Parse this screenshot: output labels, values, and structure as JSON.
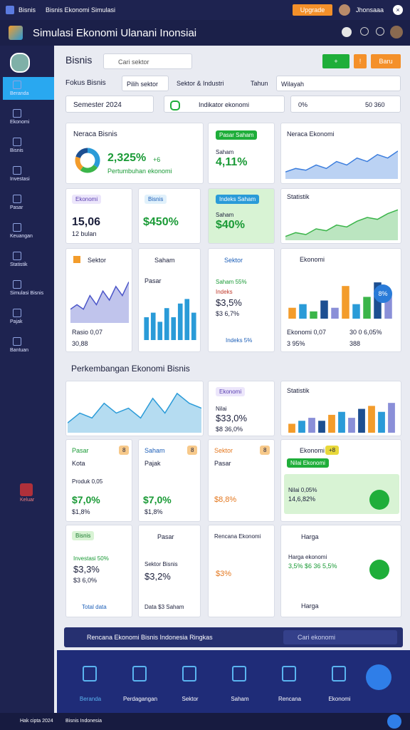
{
  "topbar": {
    "app": "Bisnis",
    "title": "Bisnis Ekonomi Simulasi",
    "button": "Upgrade",
    "user": "Jhonsaaa"
  },
  "header": {
    "title": "Simulasi Ekonomi Ulanani Inonsiai"
  },
  "sidebar": {
    "items": [
      "Beranda",
      "Ekonomi",
      "Bisnis",
      "Investasi",
      "Pasar",
      "Keuangan",
      "Statistik",
      "Simulasi Bisnis",
      "Pajak",
      "Bantuan"
    ],
    "logout": "Keluar"
  },
  "toolbar": {
    "title": "Bisnis",
    "search": "Cari sektor",
    "add": "+",
    "alert": "!",
    "new": "Baru"
  },
  "filters": {
    "label": "Fokus Bisnis",
    "sector": "Pilih sektor",
    "industry": "Sektor & Industri",
    "year": "Tahun",
    "region": "Wilayah",
    "period": "Semester 2024",
    "indicator": "Indikator ekonomi",
    "pct": "0%",
    "total": "50 360"
  },
  "cards": {
    "neraca": {
      "title": "Neraca Bisnis",
      "value": "2,325%",
      "delta": "+6",
      "note": "Pertumbuhan ekonomi"
    },
    "saham": {
      "tag": "Pasar Saham",
      "label": "Saham",
      "value": "4,11%"
    },
    "neraca_ekonomi": {
      "title": "Neraca Ekonomi"
    },
    "ekonomi": {
      "tag": "Ekonomi",
      "value": "15,06",
      "note": "12 bulan"
    },
    "bisnis": {
      "tag": "Bisnis",
      "value": "$450%"
    },
    "indeks": {
      "tag": "Indeks Saham",
      "label": "Saham",
      "value": "$40%"
    },
    "statistik": {
      "title": "Statistik"
    },
    "sektor": {
      "title": "Sektor",
      "ratio": "Rasio 0,07",
      "value": "30,88"
    },
    "saham2": {
      "title": "Saham",
      "label": "Pasar"
    },
    "sektor2": {
      "title": "Sektor",
      "l1": "Saham 55%",
      "l2": "Indeks",
      "v1": "$3,5%",
      "v2": "$3 6,7%",
      "foot": "Indeks 5%"
    },
    "ekonomi2": {
      "title": "Ekonomi",
      "badge": "8%",
      "l1": "Ekonomi 0,07",
      "l2": "30 0 6,05%",
      "l3": "3 95%",
      "l4": "388"
    },
    "section": {
      "title": "Perkembangan Ekonomi Bisnis"
    },
    "ekonomi3": {
      "tag": "Ekonomi",
      "l1": "Nilai",
      "v1": "$33,0%",
      "v2": "$8 36,0%"
    },
    "statistik2": {
      "title": "Statistik"
    },
    "pasar": {
      "tag": "Pasar",
      "badge": "8",
      "title": "Kota",
      "l1": "Produk 0,05",
      "v1": "$7,0%",
      "v2": "$1,8%"
    },
    "saham3": {
      "tag": "Saham",
      "badge": "8",
      "title": "Pajak",
      "v1": "$7,0%",
      "v2": "$1,8%"
    },
    "sektor3": {
      "tag": "Sektor",
      "badge": "8",
      "title": "Pasar",
      "v1": "$8,8%"
    },
    "ekonomi4": {
      "title": "Ekonomi",
      "badge": "+8",
      "tag": "Nilai Ekonomi",
      "l1": "Nilai 0,05%",
      "v1": "14,6,82%"
    },
    "bisnis2": {
      "tag": "Bisnis",
      "l1": "Investasi 50%",
      "v1": "$3,3%",
      "v2": "$3 6,0%",
      "foot": "Total data"
    },
    "pasar2": {
      "tag": "Pasar",
      "l1": "Sektor Bisnis",
      "v1": "$3,2%",
      "foot": "Data $3 Saham"
    },
    "rencana": {
      "title": "Rencana Ekonomi",
      "v1": "$3%"
    },
    "harga": {
      "title": "Harga",
      "l1": "Harga ekonomi",
      "v1": "3,5% $6 36 5,5%",
      "foot": "Harga"
    }
  },
  "banner": {
    "title": "Rencana Ekonomi Bisnis Indonesia Ringkas",
    "search": "Cari ekonomi"
  },
  "nav": {
    "items": [
      "Beranda",
      "Perdagangan",
      "Sektor",
      "Saham",
      "Rencana",
      "Ekonomi"
    ]
  },
  "footer": {
    "left": "Hak cipta 2024",
    "center": "Bisnis Indonesia"
  },
  "charts": [
    {
      "type": "donut",
      "values": [
        35,
        25,
        20,
        20
      ],
      "colors": [
        "#2a9bd8",
        "#3bb54a",
        "#f39c2b",
        "#1d4f91"
      ]
    },
    {
      "type": "area",
      "values": [
        2,
        3,
        2.5,
        4,
        3,
        5,
        4,
        6,
        5,
        7,
        6,
        8
      ],
      "ylim": [
        0,
        9
      ],
      "color": "#3b7ddd"
    },
    {
      "type": "area",
      "values": [
        1,
        2,
        1.5,
        3,
        2.5,
        4,
        3.5,
        5,
        6,
        5.5,
        7,
        8
      ],
      "ylim": [
        0,
        9
      ],
      "color": "#3bb54a"
    },
    {
      "type": "area",
      "values": [
        3,
        4,
        3,
        6,
        4,
        7,
        5,
        8,
        6,
        9
      ],
      "ylim": [
        0,
        10
      ],
      "color": "#4b55c8"
    },
    {
      "type": "bar",
      "values": [
        5,
        6,
        4,
        7,
        5,
        8,
        9,
        6
      ],
      "ylim": [
        0,
        10
      ],
      "colors": [
        "#2a9bd8"
      ]
    },
    {
      "type": "bar",
      "values": [
        3,
        4,
        2,
        5,
        3,
        9,
        4,
        6,
        10,
        7
      ],
      "ylim": [
        0,
        11
      ],
      "colors": [
        "#f39c2b",
        "#2a9bd8",
        "#3bb54a",
        "#1d4f91",
        "#8a8fd8"
      ]
    },
    {
      "type": "area",
      "values": [
        2,
        4,
        3,
        6,
        4,
        5,
        3,
        7,
        4,
        8,
        6,
        5
      ],
      "ylim": [
        0,
        9
      ],
      "color": "#2a9bd8"
    },
    {
      "type": "bar",
      "values": [
        3,
        4,
        5,
        4,
        6,
        7,
        5,
        8,
        9,
        7,
        10
      ],
      "ylim": [
        0,
        11
      ],
      "colors": [
        "#f39c2b",
        "#2a9bd8",
        "#8a8fd8",
        "#1d4f91"
      ]
    }
  ]
}
